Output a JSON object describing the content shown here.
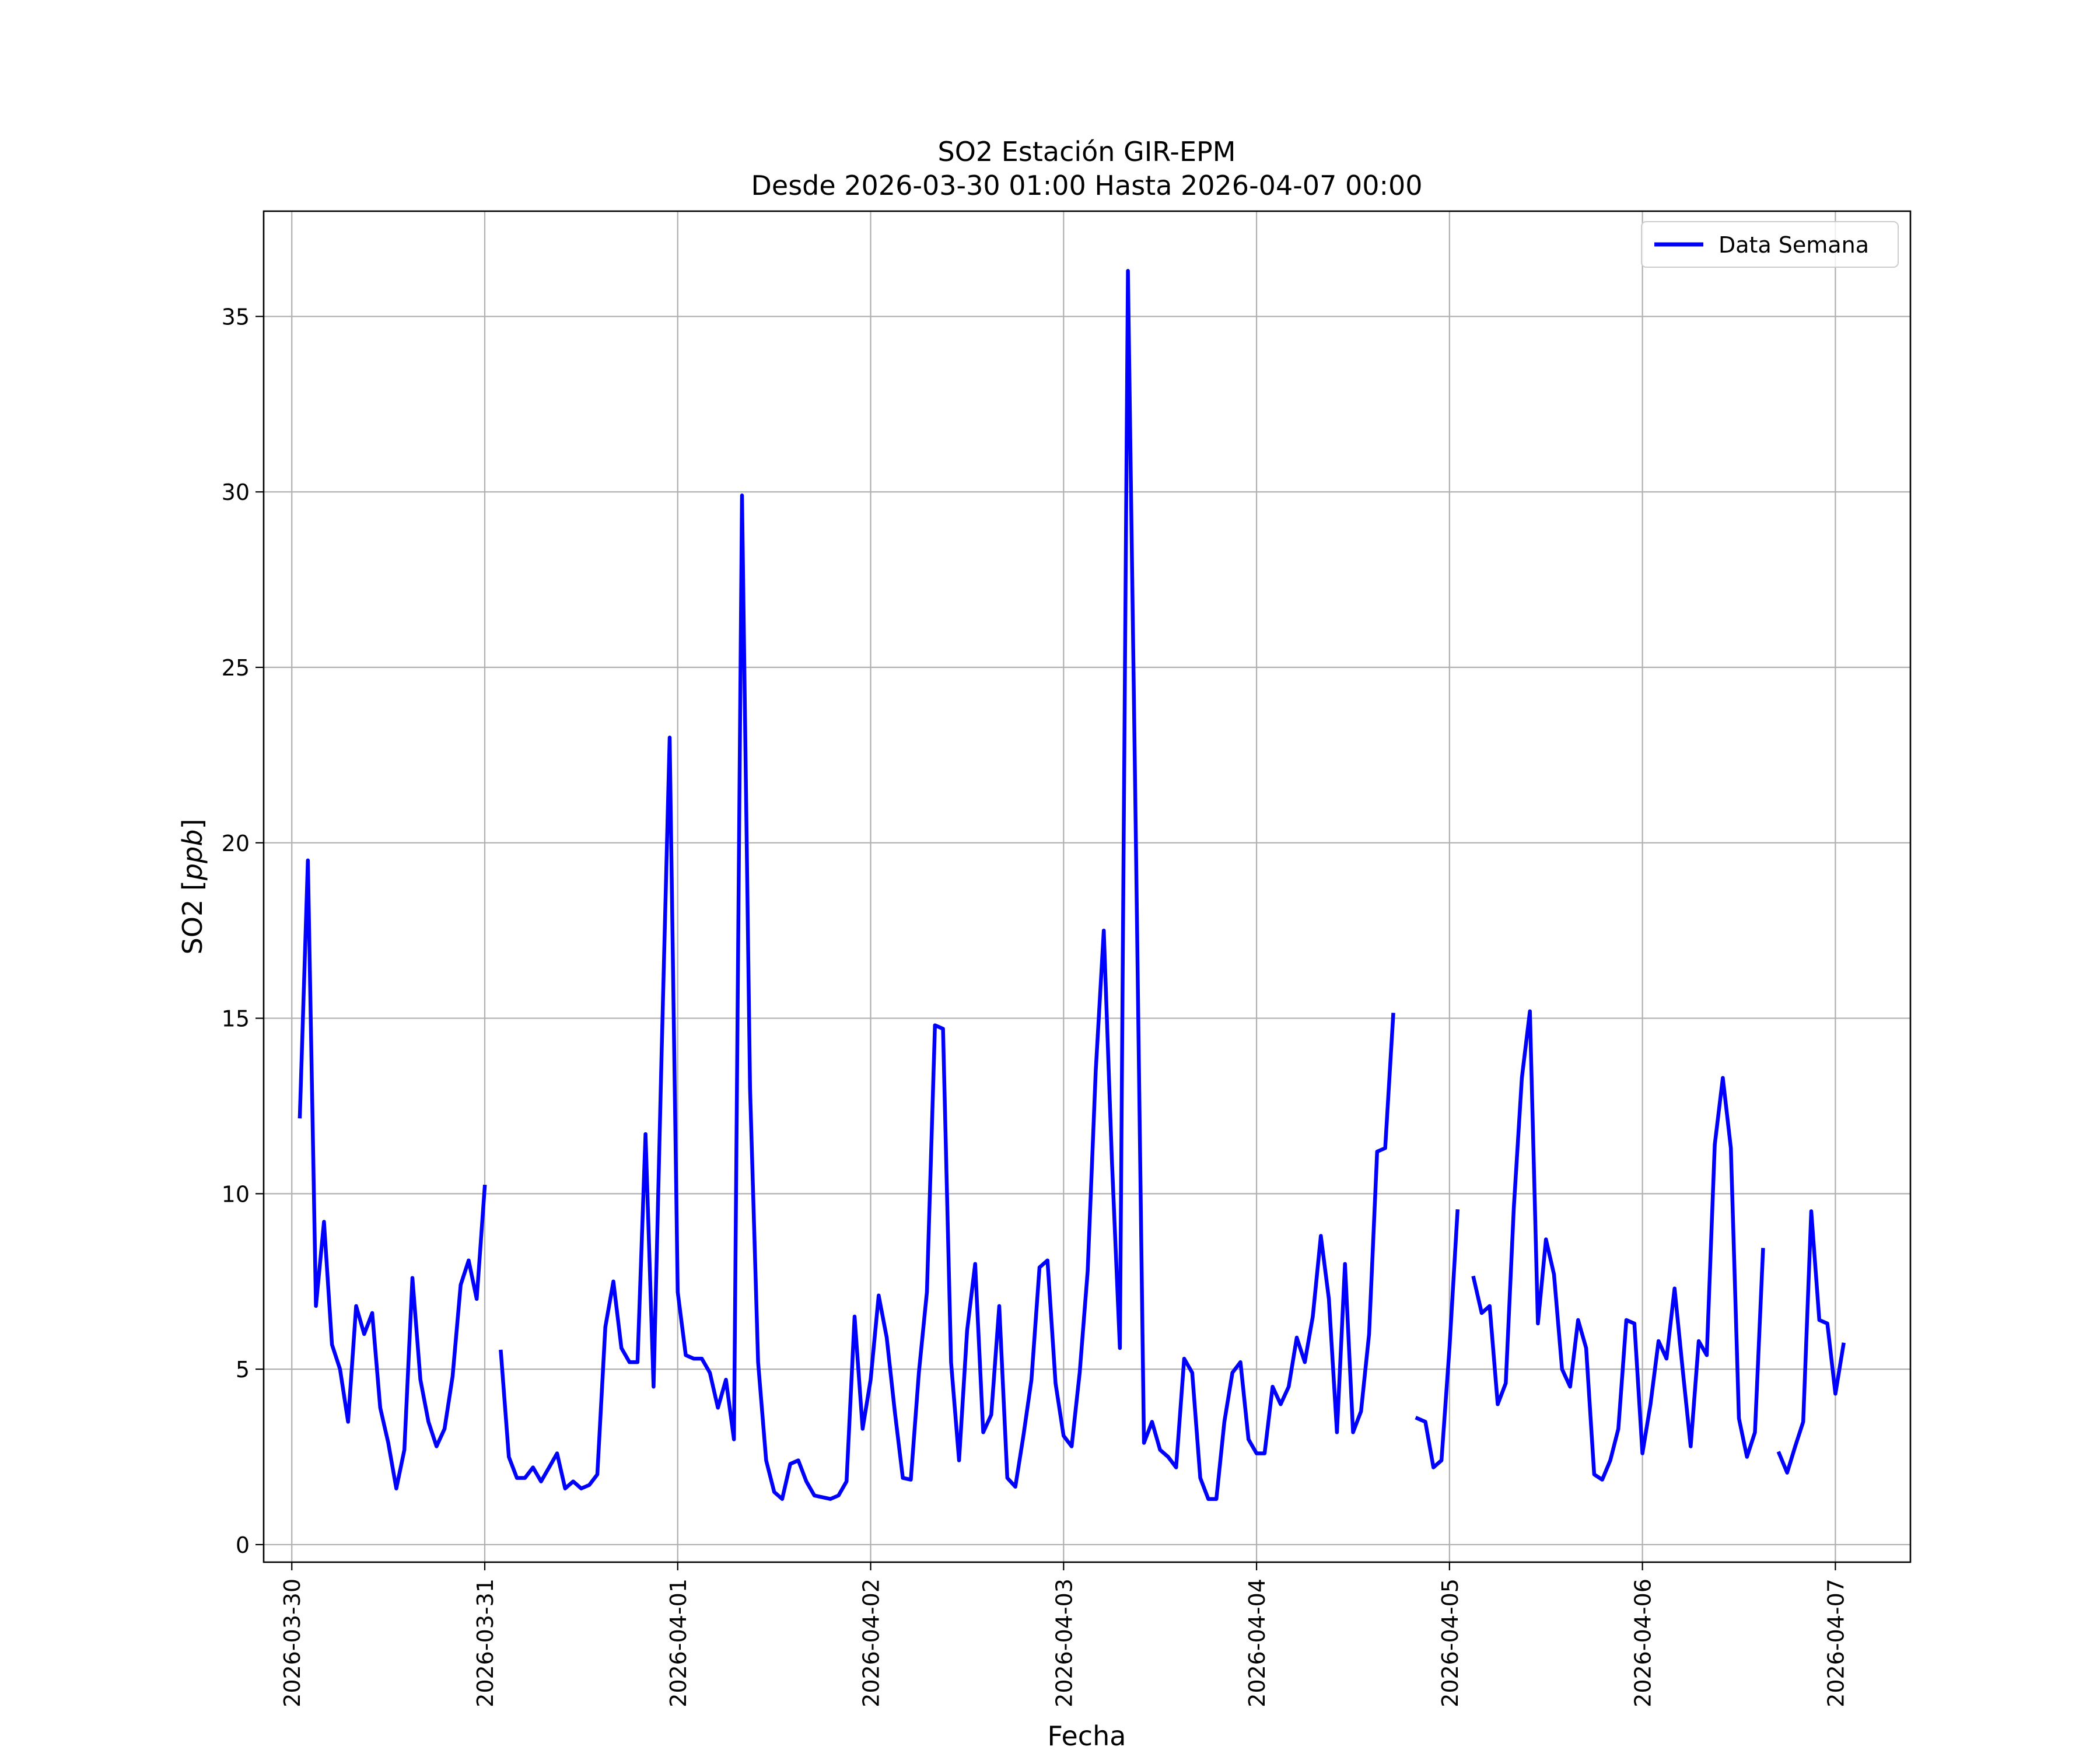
{
  "chart_data": {
    "type": "line",
    "title": "SO2 Estación GIR-EPM",
    "subtitle": "Desde 2026-03-30 01:00 Hasta 2026-04-07 00:00",
    "xlabel": "Fecha",
    "ylabel": "SO2 [ppb]",
    "ylabel_prefix": "SO2 [",
    "ylabel_unit": "ppb",
    "ylabel_suffix": "]",
    "xlim": [
      "2026-03-29 20:30",
      "2026-04-07 09:20"
    ],
    "ylim": [
      -0.5,
      38
    ],
    "grid": true,
    "legend_position": "top-right",
    "line_color": "#0000ff",
    "x_ticks": [
      "2026-03-30",
      "2026-03-31",
      "2026-04-01",
      "2026-04-02",
      "2026-04-03",
      "2026-04-04",
      "2026-04-05",
      "2026-04-06",
      "2026-04-07"
    ],
    "y_ticks": [
      0,
      5,
      10,
      15,
      20,
      25,
      30,
      35
    ],
    "series": [
      {
        "name": "Data Semana",
        "start": "2026-03-30 01:00",
        "step_hours": 1,
        "values": [
          12.2,
          19.5,
          6.8,
          9.2,
          5.7,
          5.0,
          3.5,
          6.8,
          6.0,
          6.6,
          3.9,
          2.9,
          1.6,
          2.7,
          7.6,
          4.7,
          3.5,
          2.8,
          3.3,
          4.8,
          7.4,
          8.1,
          7.0,
          10.2,
          null,
          5.5,
          2.5,
          1.9,
          1.9,
          2.2,
          1.8,
          2.2,
          2.6,
          1.6,
          1.8,
          1.6,
          1.7,
          2.0,
          6.2,
          7.5,
          5.6,
          5.2,
          5.2,
          11.7,
          4.5,
          14.0,
          23.0,
          7.2,
          5.4,
          5.3,
          5.3,
          4.9,
          3.9,
          4.7,
          3.0,
          29.9,
          13.0,
          5.2,
          2.4,
          1.5,
          1.3,
          2.3,
          2.4,
          1.8,
          1.4,
          1.35,
          1.3,
          1.4,
          1.8,
          6.5,
          3.3,
          4.7,
          7.1,
          5.9,
          3.8,
          1.9,
          1.85,
          4.9,
          7.2,
          14.8,
          14.7,
          5.2,
          2.4,
          6.1,
          8.0,
          3.2,
          3.7,
          6.8,
          1.9,
          1.65,
          3.1,
          4.7,
          7.9,
          8.1,
          4.6,
          3.1,
          2.8,
          4.9,
          7.8,
          13.5,
          17.5,
          11.0,
          5.6,
          36.3,
          20.0,
          2.9,
          3.5,
          2.7,
          2.5,
          2.2,
          5.3,
          4.9,
          1.9,
          1.3,
          1.3,
          3.5,
          4.9,
          5.2,
          3.0,
          2.6,
          2.6,
          4.5,
          4.0,
          4.5,
          5.9,
          5.2,
          6.5,
          8.8,
          7.0,
          3.2,
          8.0,
          3.2,
          3.8,
          6.0,
          11.2,
          11.3,
          15.1,
          null,
          null,
          3.6,
          3.5,
          2.2,
          2.4,
          5.6,
          9.5,
          null,
          7.6,
          6.6,
          6.8,
          4.0,
          4.6,
          9.6,
          13.3,
          15.2,
          6.3,
          8.7,
          7.7,
          5.0,
          4.5,
          6.4,
          5.6,
          2.0,
          1.85,
          2.4,
          3.3,
          6.4,
          6.3,
          2.6,
          4.0,
          5.8,
          5.3,
          7.3,
          5.0,
          2.8,
          5.8,
          5.4,
          11.4,
          13.3,
          11.3,
          3.6,
          2.5,
          3.2,
          8.4,
          null,
          2.6,
          2.05,
          2.8,
          3.5,
          9.5,
          6.4,
          6.3,
          4.3,
          5.7
        ]
      }
    ]
  }
}
